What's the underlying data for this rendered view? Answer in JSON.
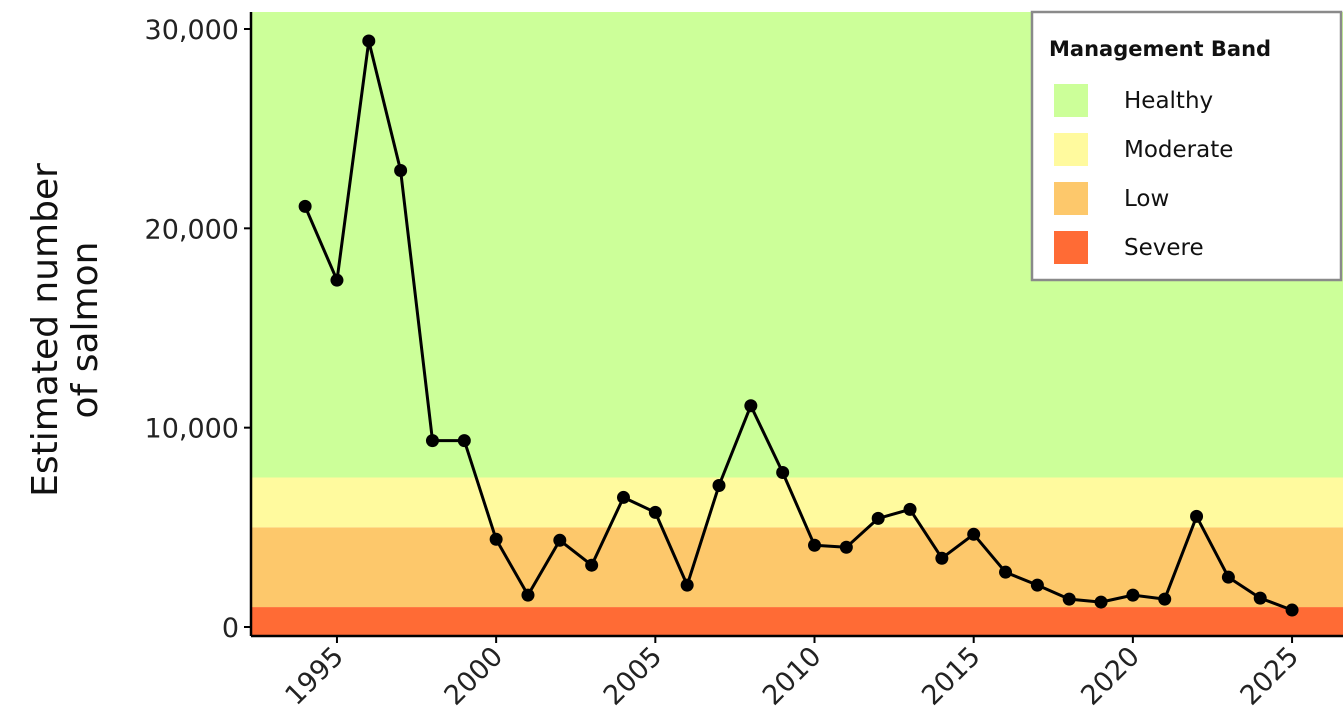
{
  "chart_data": {
    "type": "line",
    "ylabel": [
      "Estimated number",
      "of salmon"
    ],
    "xlabel": "",
    "xlim": [
      1992.3,
      2026.6
    ],
    "ylim": [
      0,
      30000
    ],
    "x_ticks": [
      1995,
      2000,
      2005,
      2010,
      2015,
      2020,
      2025
    ],
    "x_tick_labels": [
      "1995",
      "2000",
      "2005",
      "2010",
      "2015",
      "2020",
      "2025"
    ],
    "y_ticks": [
      0,
      10000,
      20000,
      30000
    ],
    "y_tick_labels": [
      "0",
      "10,000",
      "20,000",
      "30,000"
    ],
    "bands": [
      {
        "name": "Severe",
        "from": 0,
        "to": 1000,
        "color": "#FF6B35"
      },
      {
        "name": "Low",
        "from": 1000,
        "to": 5000,
        "color": "#FDC86B"
      },
      {
        "name": "Moderate",
        "from": 5000,
        "to": 7500,
        "color": "#FFFA9E"
      },
      {
        "name": "Healthy",
        "from": 7500,
        "to": 31000,
        "color": "#CCFF99"
      }
    ],
    "series": [
      {
        "color": "#000000",
        "x": [
          1994,
          1995,
          1996,
          1997,
          1998,
          1999,
          2000,
          2001,
          2002,
          2003,
          2004,
          2005,
          2006,
          2007,
          2008,
          2009,
          2010,
          2011,
          2012,
          2013,
          2014,
          2015,
          2016,
          2017,
          2018,
          2019,
          2020,
          2021,
          2022,
          2023,
          2024,
          2025
        ],
        "y": [
          21100,
          17400,
          29400,
          22900,
          9350,
          9350,
          4400,
          1600,
          4350,
          3100,
          6500,
          5750,
          2100,
          7100,
          11100,
          7750,
          4100,
          4000,
          5450,
          5900,
          3450,
          4650,
          2750,
          2100,
          1400,
          1250,
          1600,
          1400,
          5550,
          2500,
          1450,
          850
        ]
      }
    ],
    "legend": {
      "title": "Management Band",
      "position": "top-right",
      "items": [
        {
          "label": "Healthy",
          "color": "#CCFF99"
        },
        {
          "label": "Moderate",
          "color": "#FFFA9E"
        },
        {
          "label": "Low",
          "color": "#FDC86B"
        },
        {
          "label": "Severe",
          "color": "#FF6B35"
        }
      ]
    },
    "grid": false
  }
}
